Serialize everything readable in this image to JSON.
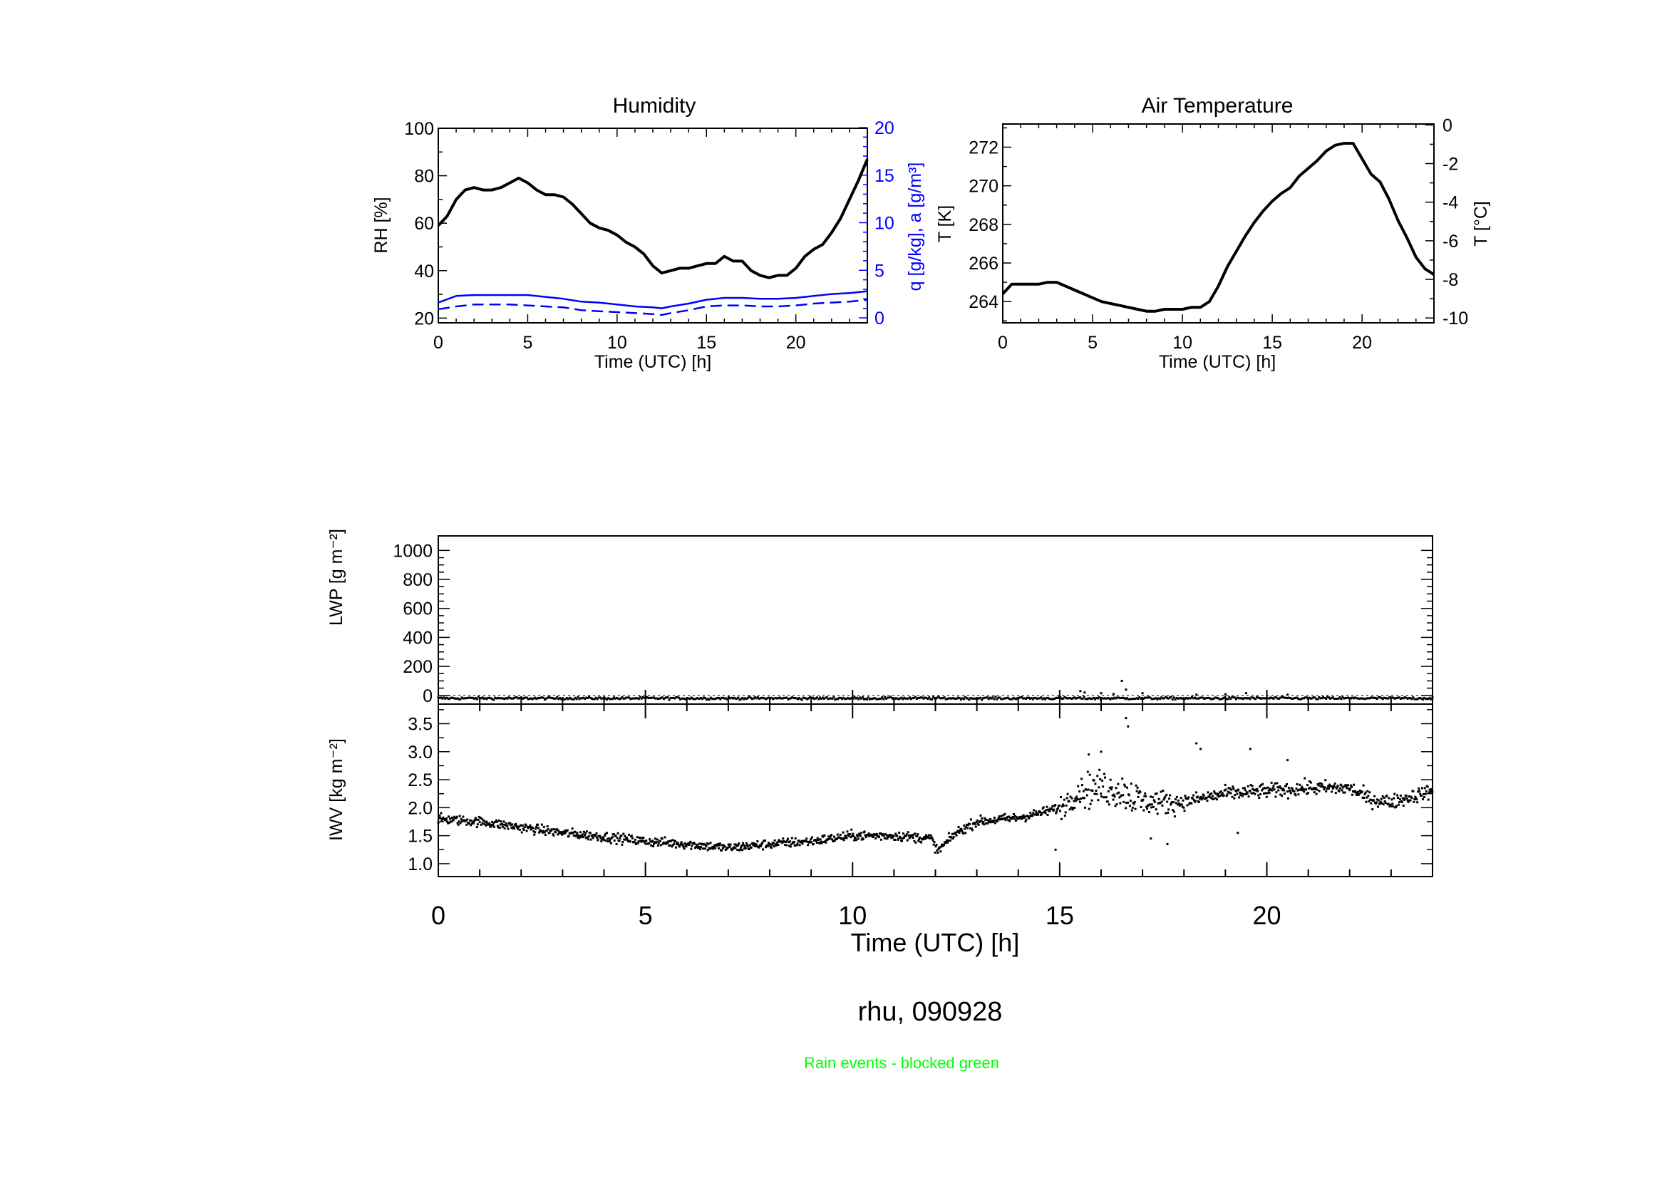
{
  "figure": {
    "station_label": "rhu, 090928",
    "note": "Rain events - blocked green",
    "note_color": "#00ff00"
  },
  "chart_data": [
    {
      "id": "humidity",
      "type": "line",
      "title": "Humidity",
      "xlabel": "Time (UTC) [h]",
      "ylabel": "RH [%]",
      "ylabel_right": "q [g/kg], a [g/m³]",
      "xlim": [
        0,
        24
      ],
      "ylim": [
        18,
        100
      ],
      "ylim_right": [
        0,
        20
      ],
      "x_ticks": [
        0,
        5,
        10,
        15,
        20
      ],
      "y_ticks": [
        20,
        40,
        60,
        80,
        100
      ],
      "y_ticks_right": [
        0,
        5,
        10,
        15,
        20
      ],
      "colors": {
        "rh": "#000000",
        "moisture": "#0000ff"
      },
      "series": [
        {
          "name": "RH",
          "axis": "left",
          "style": "solid",
          "x": [
            0,
            0.5,
            1,
            1.5,
            2,
            2.5,
            3,
            3.5,
            4,
            4.5,
            5,
            5.5,
            6,
            6.5,
            7,
            7.5,
            8,
            8.5,
            9,
            9.5,
            10,
            10.5,
            11,
            11.5,
            12,
            12.5,
            13,
            13.5,
            14,
            14.5,
            15,
            15.5,
            16,
            16.5,
            17,
            17.5,
            18,
            18.5,
            19,
            19.5,
            20,
            20.5,
            21,
            21.5,
            22,
            22.5,
            23,
            23.5,
            24
          ],
          "y": [
            59,
            63,
            70,
            74,
            75,
            74,
            74,
            75,
            77,
            79,
            77,
            74,
            72,
            72,
            71,
            68,
            64,
            60,
            58,
            57,
            55,
            52,
            50,
            47,
            42,
            39,
            40,
            41,
            41,
            42,
            43,
            43,
            46,
            44,
            44,
            40,
            38,
            37,
            38,
            38,
            41,
            46,
            49,
            51,
            56,
            62,
            70,
            78,
            87
          ]
        },
        {
          "name": "q [g/kg]",
          "axis": "right",
          "style": "solid",
          "x": [
            0,
            1,
            2,
            3,
            4,
            5,
            6,
            7,
            8,
            9,
            10,
            11,
            12,
            12.5,
            13,
            14,
            15,
            16,
            17,
            18,
            19,
            20,
            21,
            22,
            23,
            24
          ],
          "y": [
            1.6,
            2.3,
            2.4,
            2.4,
            2.4,
            2.4,
            2.2,
            2.0,
            1.7,
            1.6,
            1.4,
            1.2,
            1.1,
            1.0,
            1.2,
            1.5,
            1.9,
            2.1,
            2.1,
            2.0,
            2.0,
            2.1,
            2.3,
            2.5,
            2.6,
            2.8
          ]
        },
        {
          "name": "a [g/m³]",
          "axis": "right",
          "style": "dashed",
          "x": [
            0,
            1,
            2,
            3,
            4,
            5,
            6,
            7,
            8,
            9,
            10,
            11,
            12,
            12.5,
            13,
            14,
            15,
            16,
            17,
            18,
            19,
            20,
            21,
            22,
            23,
            24
          ],
          "y": [
            0.9,
            1.2,
            1.4,
            1.4,
            1.4,
            1.3,
            1.2,
            1.1,
            0.8,
            0.7,
            0.6,
            0.5,
            0.4,
            0.3,
            0.5,
            0.8,
            1.2,
            1.3,
            1.3,
            1.2,
            1.2,
            1.3,
            1.5,
            1.6,
            1.7,
            1.9
          ]
        }
      ]
    },
    {
      "id": "air-temperature",
      "type": "line",
      "title": "Air Temperature",
      "xlabel": "Time (UTC) [h]",
      "ylabel": "T [K]",
      "ylabel_right": "T [°C]",
      "xlim": [
        0,
        24
      ],
      "ylim": [
        262.9,
        273.2
      ],
      "ylim_right": [
        -10.25,
        0.05
      ],
      "x_ticks": [
        0,
        5,
        10,
        15,
        20
      ],
      "y_ticks": [
        264,
        266,
        268,
        270,
        272
      ],
      "y_ticks_right": [
        -10,
        -8,
        -6,
        -4,
        -2,
        0
      ],
      "colors": {
        "t": "#000000"
      },
      "series": [
        {
          "name": "T",
          "x": [
            0,
            0.5,
            1,
            1.5,
            2,
            2.5,
            3,
            3.5,
            4,
            4.5,
            5,
            5.5,
            6,
            6.5,
            7,
            7.5,
            8,
            8.5,
            9,
            9.5,
            10,
            10.5,
            11,
            11.5,
            12,
            12.5,
            13,
            13.5,
            14,
            14.5,
            15,
            15.5,
            16,
            16.5,
            17,
            17.5,
            18,
            18.5,
            19,
            19.5,
            20,
            20.5,
            21,
            21.5,
            22,
            22.5,
            23,
            23.5,
            24
          ],
          "y": [
            264.4,
            264.9,
            264.9,
            264.9,
            264.9,
            265.0,
            265.0,
            264.8,
            264.6,
            264.4,
            264.2,
            264.0,
            263.9,
            263.8,
            263.7,
            263.6,
            263.5,
            263.5,
            263.6,
            263.6,
            263.6,
            263.7,
            263.7,
            264.0,
            264.8,
            265.8,
            266.6,
            267.4,
            268.1,
            268.7,
            269.2,
            269.6,
            269.9,
            270.5,
            270.9,
            271.3,
            271.8,
            272.1,
            272.2,
            272.2,
            271.4,
            270.6,
            270.2,
            269.3,
            268.2,
            267.3,
            266.3,
            265.7,
            265.4
          ]
        }
      ]
    },
    {
      "id": "lwp",
      "type": "scatter",
      "xlabel": "",
      "ylabel": "LWP [g m⁻²]",
      "xlim": [
        0,
        24
      ],
      "ylim": [
        -60,
        1100
      ],
      "y_ticks": [
        0,
        200,
        400,
        600,
        800,
        1000
      ],
      "reference_line": 0,
      "baseline": -20,
      "noise": 6,
      "peaks": [
        {
          "x": 15.5,
          "y": 30
        },
        {
          "x": 15.6,
          "y": 20
        },
        {
          "x": 16.0,
          "y": 15
        },
        {
          "x": 16.3,
          "y": 10
        },
        {
          "x": 16.5,
          "y": 100
        },
        {
          "x": 16.6,
          "y": 40
        },
        {
          "x": 17.0,
          "y": 15
        },
        {
          "x": 18.3,
          "y": 5
        },
        {
          "x": 19.0,
          "y": 8
        },
        {
          "x": 19.5,
          "y": 15
        },
        {
          "x": 20.5,
          "y": 5
        }
      ]
    },
    {
      "id": "iwv",
      "type": "scatter",
      "xlabel": "Time (UTC) [h]",
      "ylabel": "IWV [kg m⁻²]",
      "xlim": [
        0,
        24
      ],
      "ylim": [
        0.77,
        3.85
      ],
      "x_ticks": [
        0,
        5,
        10,
        15,
        20
      ],
      "y_ticks": [
        1.0,
        1.5,
        2.0,
        2.5,
        3.0,
        3.5
      ],
      "trend": {
        "x": [
          0,
          1,
          2,
          3,
          4,
          5,
          6,
          7,
          8,
          9,
          10,
          11,
          11.9,
          12.05,
          12.5,
          13,
          14,
          14.5,
          15,
          15.5,
          16,
          16.5,
          17,
          18,
          19,
          20,
          21,
          22,
          22.5,
          23,
          24
        ],
        "y": [
          1.8,
          1.75,
          1.65,
          1.55,
          1.48,
          1.4,
          1.35,
          1.28,
          1.35,
          1.4,
          1.5,
          1.5,
          1.45,
          1.22,
          1.55,
          1.75,
          1.82,
          1.9,
          2.0,
          2.3,
          2.35,
          2.3,
          2.1,
          2.1,
          2.25,
          2.3,
          2.35,
          2.35,
          2.15,
          2.1,
          2.3
        ]
      },
      "scatter_x": [
        15.0,
        15.6,
        17.0,
        17.8
      ],
      "outliers": [
        {
          "x": 16.6,
          "y": 3.6
        },
        {
          "x": 16.65,
          "y": 3.45
        },
        {
          "x": 15.7,
          "y": 2.95
        },
        {
          "x": 16.0,
          "y": 3.0
        },
        {
          "x": 18.3,
          "y": 3.15
        },
        {
          "x": 18.4,
          "y": 3.05
        },
        {
          "x": 19.6,
          "y": 3.05
        },
        {
          "x": 20.5,
          "y": 2.85
        },
        {
          "x": 14.9,
          "y": 1.25
        },
        {
          "x": 17.2,
          "y": 1.45
        },
        {
          "x": 17.6,
          "y": 1.35
        },
        {
          "x": 19.3,
          "y": 1.55
        }
      ]
    }
  ]
}
